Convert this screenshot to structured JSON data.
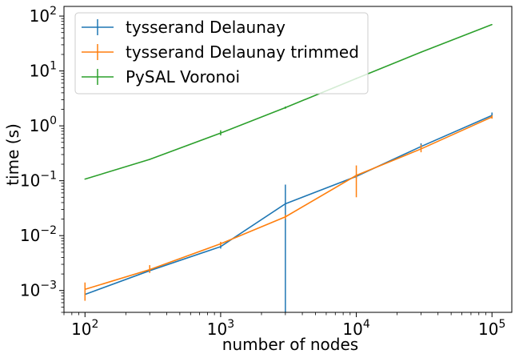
{
  "chart_data": {
    "type": "line",
    "xlabel": "number of nodes",
    "ylabel": "time (s)",
    "xscale": "log",
    "yscale": "log",
    "xlim": [
      70,
      140000
    ],
    "ylim": [
      0.0004,
      150
    ],
    "x_ticks": [
      {
        "value": 100,
        "base": "10",
        "exp": "2"
      },
      {
        "value": 1000,
        "base": "10",
        "exp": "3"
      },
      {
        "value": 10000,
        "base": "10",
        "exp": "4"
      },
      {
        "value": 100000,
        "base": "10",
        "exp": "5"
      }
    ],
    "y_ticks": [
      {
        "value": 0.001,
        "base": "10",
        "exp": "−3"
      },
      {
        "value": 0.01,
        "base": "10",
        "exp": "−2"
      },
      {
        "value": 0.1,
        "base": "10",
        "exp": "−1"
      },
      {
        "value": 1,
        "base": "10",
        "exp": "0"
      },
      {
        "value": 10,
        "base": "10",
        "exp": "1"
      },
      {
        "value": 100,
        "base": "10",
        "exp": "2"
      }
    ],
    "legend_position": "top-left",
    "grid": false,
    "series": [
      {
        "name": "tysserand Delaunay",
        "color": "#1f77b4",
        "x": [
          100,
          300,
          1000,
          3000,
          10000,
          30000,
          100000
        ],
        "y": [
          0.00085,
          0.0023,
          0.0063,
          0.038,
          0.12,
          0.42,
          1.55
        ],
        "err_low": [
          0.0008,
          0.0021,
          0.0058,
          0.0003,
          0.11,
          0.38,
          1.42
        ],
        "err_high": [
          0.0009,
          0.0025,
          0.0068,
          0.085,
          0.13,
          0.48,
          1.75
        ]
      },
      {
        "name": "tysserand Delaunay trimmed",
        "color": "#ff7f0e",
        "x": [
          100,
          300,
          1000,
          3000,
          10000,
          30000,
          100000
        ],
        "y": [
          0.00105,
          0.0024,
          0.0071,
          0.022,
          0.125,
          0.38,
          1.45
        ],
        "err_low": [
          0.00065,
          0.0021,
          0.0065,
          0.02,
          0.05,
          0.33,
          1.35
        ],
        "err_high": [
          0.0014,
          0.0029,
          0.0077,
          0.024,
          0.19,
          0.45,
          1.55
        ]
      },
      {
        "name": "PySAL Voronoi",
        "color": "#2ca02c",
        "x": [
          100,
          300,
          1000,
          3000,
          10000,
          30000,
          100000
        ],
        "y": [
          0.107,
          0.245,
          0.74,
          2.15,
          7.3,
          22,
          70
        ],
        "err_low": [
          0.105,
          0.24,
          0.67,
          2.05,
          7.1,
          21.5,
          69
        ],
        "err_high": [
          0.109,
          0.25,
          0.83,
          2.25,
          7.5,
          22.5,
          71
        ]
      }
    ]
  }
}
